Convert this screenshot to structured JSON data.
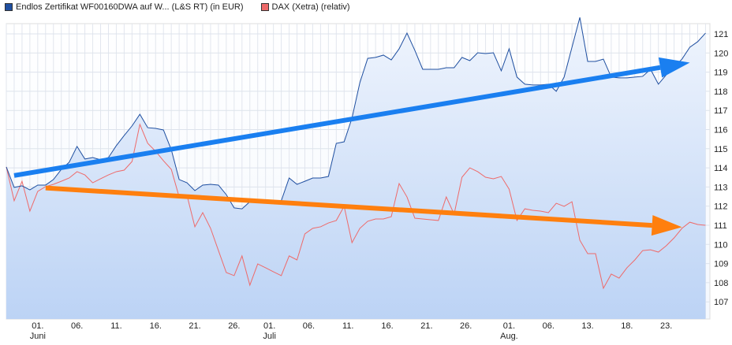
{
  "chart_data": {
    "type": "line",
    "title": "",
    "legend_placement": "top-left",
    "legend": [
      {
        "name": "Endlos Zertifikat WF00160DWA auf W... (L&S RT) (in EUR)",
        "color": "#1f4fa0"
      },
      {
        "name": "DAX (Xetra) (relativ)",
        "color": "#ee6a6a"
      }
    ],
    "ylim": [
      106,
      121.5
    ],
    "y_ticks": [
      107,
      108,
      109,
      110,
      111,
      112,
      113,
      114,
      115,
      116,
      117,
      118,
      119,
      120,
      121
    ],
    "x_ticks": [
      {
        "label": "01.",
        "sub": "Juni",
        "idx": 4
      },
      {
        "label": "06.",
        "idx": 9
      },
      {
        "label": "11.",
        "idx": 14
      },
      {
        "label": "16.",
        "idx": 19
      },
      {
        "label": "21.",
        "idx": 24
      },
      {
        "label": "26.",
        "idx": 29
      },
      {
        "label": "01.",
        "sub": "Juli",
        "idx": 33.5
      },
      {
        "label": "06.",
        "idx": 38.5
      },
      {
        "label": "11.",
        "idx": 43.5
      },
      {
        "label": "16.",
        "idx": 48.5
      },
      {
        "label": "21.",
        "idx": 53.5
      },
      {
        "label": "26.",
        "idx": 58.5
      },
      {
        "label": "01.",
        "sub": "Aug.",
        "idx": 64
      },
      {
        "label": "06.",
        "idx": 69
      },
      {
        "label": "13.",
        "idx": 74
      },
      {
        "label": "18.",
        "idx": 79
      },
      {
        "label": "23.",
        "idx": 84
      }
    ],
    "series": [
      {
        "name": "Endlos Zertifikat WF00160DWA",
        "values": [
          114.05,
          112.98,
          113.06,
          112.85,
          113.1,
          113.1,
          113.39,
          113.92,
          114.29,
          115.12,
          114.46,
          114.54,
          114.42,
          114.54,
          115.16,
          115.69,
          116.19,
          116.8,
          116.1,
          116.06,
          115.98,
          114.95,
          113.39,
          113.22,
          112.81,
          113.1,
          113.14,
          113.1,
          112.6,
          111.91,
          111.86,
          112.23,
          112.23,
          112.23,
          112.28,
          112.28,
          113.47,
          113.14,
          113.3,
          113.47,
          113.47,
          113.55,
          115.28,
          115.36,
          116.6,
          118.45,
          119.72,
          119.77,
          119.89,
          119.64,
          120.22,
          121.04,
          120.14,
          119.15,
          119.15,
          119.15,
          119.23,
          119.23,
          119.77,
          119.6,
          120.01,
          119.97,
          120.01,
          119.07,
          120.22,
          118.74,
          118.37,
          118.33,
          118.33,
          118.37,
          118.0,
          118.74,
          120.3,
          121.86,
          119.56,
          119.56,
          119.68,
          118.74,
          118.7,
          118.7,
          118.74,
          118.78,
          119.15,
          118.37,
          118.86,
          119.27,
          119.68,
          120.3,
          120.59,
          121.04
        ]
      },
      {
        "name": "DAX (Xetra) (relativ)",
        "values": [
          114.05,
          112.28,
          113.3,
          111.74,
          112.77,
          113.02,
          113.14,
          113.3,
          113.47,
          113.8,
          113.63,
          113.22,
          113.43,
          113.63,
          113.8,
          113.88,
          114.33,
          116.27,
          115.28,
          114.87,
          114.37,
          113.92,
          112.48,
          112.56,
          110.92,
          111.66,
          110.84,
          109.68,
          108.53,
          108.37,
          109.4,
          107.87,
          108.98,
          108.78,
          108.57,
          108.37,
          109.4,
          109.19,
          110.55,
          110.84,
          110.92,
          111.12,
          111.25,
          111.99,
          110.09,
          110.84,
          111.21,
          111.33,
          111.33,
          111.45,
          113.18,
          112.48,
          111.37,
          111.33,
          111.29,
          111.25,
          112.48,
          111.58,
          113.51,
          114.0,
          113.8,
          113.51,
          113.43,
          113.55,
          112.89,
          111.25,
          111.86,
          111.78,
          111.74,
          111.66,
          112.15,
          111.99,
          112.23,
          110.22,
          109.52,
          109.52,
          107.71,
          108.45,
          108.24,
          108.78,
          109.19,
          109.68,
          109.72,
          109.6,
          109.93,
          110.34,
          110.84,
          111.16,
          111.04,
          111.0
        ]
      }
    ],
    "annotations": [
      {
        "type": "arrow",
        "color": "#1a7ff0",
        "from": [
          1,
          113.6
        ],
        "to": [
          87,
          119.5
        ]
      },
      {
        "type": "arrow",
        "color": "#ff7f0e",
        "from": [
          5,
          112.95
        ],
        "to": [
          86,
          110.9
        ]
      }
    ]
  }
}
